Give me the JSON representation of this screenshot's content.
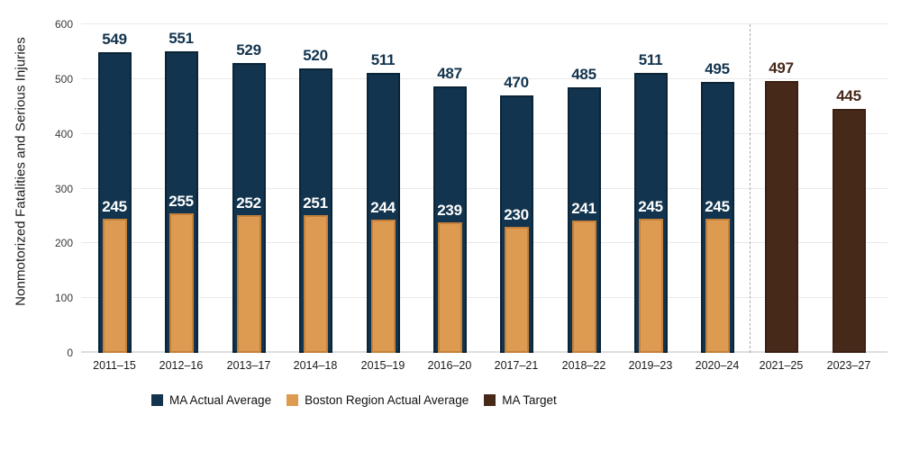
{
  "chart_data": {
    "type": "bar",
    "title": "",
    "ylabel": "Nonmotorized Fatalities and Serious Injuries",
    "xlabel": "",
    "ylim": [
      0,
      600
    ],
    "yticks": [
      0,
      100,
      200,
      300,
      400,
      500,
      600
    ],
    "grid": true,
    "legend_position": "bottom",
    "categories": [
      "2011–15",
      "2012–16",
      "2013–17",
      "2014–18",
      "2015–19",
      "2016–20",
      "2017–21",
      "2018–22",
      "2019–23",
      "2020–24",
      "2021–25",
      "2023–27"
    ],
    "series": [
      {
        "name": "MA Actual Average",
        "color": "#12344e",
        "border_color": "#0b2437",
        "label_color": "#12344e",
        "values": [
          549,
          551,
          529,
          520,
          511,
          487,
          470,
          485,
          511,
          495,
          null,
          null
        ]
      },
      {
        "name": "Boston Region Actual Average",
        "color": "#dd9b52",
        "border_color": "#c5813b",
        "label_color": "#ffffff",
        "values": [
          245,
          255,
          252,
          251,
          244,
          239,
          230,
          241,
          245,
          245,
          null,
          null
        ]
      },
      {
        "name": "MA Target",
        "color": "#47291a",
        "border_color": "#3a2113",
        "label_color": "#47291a",
        "values": [
          null,
          null,
          null,
          null,
          null,
          null,
          null,
          null,
          null,
          null,
          497,
          445
        ]
      }
    ],
    "divider_after_index": 9
  },
  "y_axis": {
    "title": "Nonmotorized Fatalities and Serious Injuries",
    "tick_labels": [
      "0",
      "100",
      "200",
      "300",
      "400",
      "500",
      "600"
    ]
  },
  "legend": {
    "items": [
      {
        "label": "MA Actual Average",
        "color": "#12344e"
      },
      {
        "label": "Boston Region Actual Average",
        "color": "#dd9b52"
      },
      {
        "label": "MA Target",
        "color": "#47291a"
      }
    ]
  }
}
